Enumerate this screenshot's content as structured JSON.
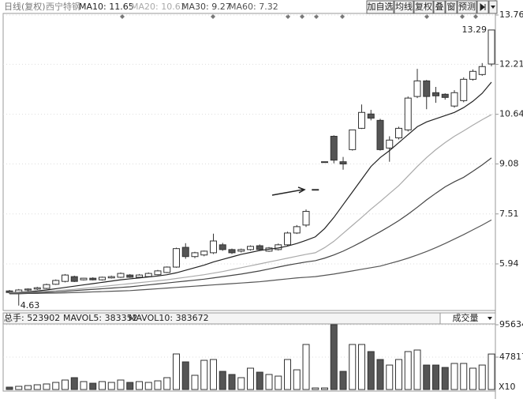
{
  "header": {
    "period": "日线(复权)",
    "stock": "西宁特钢"
  },
  "toolbar": {
    "buttons": [
      "加自选",
      "均线",
      "复权",
      "叠",
      "窗",
      "预测"
    ]
  },
  "chart_data": [
    {
      "type": "candlestick",
      "open": [
        5.09,
        5.04,
        5.12,
        5.15,
        5.17,
        5.3,
        5.39,
        5.54,
        5.44,
        5.49,
        5.44,
        5.5,
        5.52,
        5.59,
        5.52,
        5.54,
        5.6,
        5.67,
        5.84,
        6.46,
        6.17,
        6.22,
        6.29,
        6.54,
        6.39,
        6.34,
        6.39,
        6.51,
        6.34,
        6.39,
        6.54,
        6.91,
        7.16,
        8.28,
        9.15,
        9.95,
        9.15,
        9.53,
        10.2,
        10.65,
        10.45,
        9.58,
        9.9,
        10.15,
        11.2,
        11.69,
        11.32,
        11.27,
        10.9,
        11.07,
        11.74,
        11.89,
        12.22
      ],
      "high": [
        5.12,
        5.15,
        5.17,
        5.22,
        5.32,
        5.45,
        5.62,
        5.57,
        5.5,
        5.52,
        5.54,
        5.57,
        5.67,
        5.62,
        5.62,
        5.67,
        5.75,
        5.86,
        6.45,
        6.59,
        6.32,
        6.36,
        6.89,
        6.6,
        6.42,
        6.42,
        6.52,
        6.55,
        6.47,
        6.58,
        6.95,
        7.16,
        7.65,
        8.28,
        9.15,
        9.98,
        9.3,
        10.15,
        10.95,
        10.78,
        10.5,
        9.95,
        10.25,
        11.2,
        12.07,
        11.72,
        11.5,
        11.3,
        11.4,
        11.8,
        12.05,
        12.25,
        13.29
      ],
      "low": [
        5.0,
        4.63,
        5.08,
        5.12,
        5.15,
        5.28,
        5.36,
        5.37,
        5.42,
        5.42,
        5.42,
        5.48,
        5.5,
        5.5,
        5.5,
        5.52,
        5.58,
        5.65,
        5.82,
        6.1,
        6.12,
        6.18,
        6.25,
        6.35,
        6.25,
        6.3,
        6.36,
        6.36,
        6.32,
        6.36,
        6.5,
        6.88,
        7.1,
        8.28,
        9.15,
        9.1,
        8.9,
        9.5,
        10.18,
        10.45,
        9.5,
        9.15,
        9.85,
        10.1,
        11.15,
        10.8,
        11.0,
        11.1,
        10.85,
        11.02,
        11.7,
        11.85,
        12.15
      ],
      "close": [
        5.04,
        5.12,
        5.15,
        5.19,
        5.29,
        5.42,
        5.59,
        5.39,
        5.49,
        5.44,
        5.52,
        5.54,
        5.64,
        5.52,
        5.59,
        5.64,
        5.72,
        5.84,
        6.42,
        6.17,
        6.29,
        6.34,
        6.66,
        6.39,
        6.29,
        6.39,
        6.49,
        6.39,
        6.44,
        6.54,
        6.91,
        7.11,
        7.59,
        8.28,
        9.15,
        9.2,
        9.08,
        10.15,
        10.7,
        10.52,
        9.53,
        9.83,
        10.2,
        11.15,
        11.69,
        11.2,
        11.22,
        11.17,
        11.32,
        11.74,
        11.99,
        12.14,
        13.29
      ],
      "up_color": "#ffffff",
      "down_color": "#555555",
      "series": [
        {
          "name": "MA10: 11.65",
          "color": "#222222",
          "values": [
            5.04,
            5.05,
            5.07,
            5.09,
            5.12,
            5.16,
            5.2,
            5.24,
            5.28,
            5.32,
            5.36,
            5.4,
            5.44,
            5.47,
            5.5,
            5.53,
            5.56,
            5.6,
            5.66,
            5.74,
            5.82,
            5.9,
            6.0,
            6.08,
            6.16,
            6.24,
            6.3,
            6.36,
            6.4,
            6.44,
            6.5,
            6.58,
            6.68,
            6.79,
            7.05,
            7.4,
            7.8,
            8.2,
            8.6,
            9.0,
            9.28,
            9.5,
            9.75,
            10.0,
            10.25,
            10.4,
            10.5,
            10.6,
            10.7,
            10.85,
            11.05,
            11.3,
            11.65
          ]
        },
        {
          "name": "MA20: 10.63",
          "color": "#aaaaaa",
          "values": [
            5.04,
            5.04,
            5.05,
            5.06,
            5.08,
            5.1,
            5.12,
            5.14,
            5.17,
            5.2,
            5.23,
            5.26,
            5.29,
            5.32,
            5.35,
            5.38,
            5.41,
            5.44,
            5.48,
            5.52,
            5.56,
            5.6,
            5.65,
            5.7,
            5.76,
            5.82,
            5.88,
            5.94,
            6.0,
            6.06,
            6.12,
            6.18,
            6.24,
            6.29,
            6.45,
            6.65,
            6.9,
            7.15,
            7.4,
            7.66,
            7.9,
            8.15,
            8.4,
            8.7,
            9.0,
            9.28,
            9.53,
            9.75,
            9.95,
            10.12,
            10.3,
            10.47,
            10.63
          ]
        },
        {
          "name": "MA30: 9.27",
          "color": "#444444",
          "values": [
            5.02,
            5.02,
            5.03,
            5.04,
            5.05,
            5.06,
            5.08,
            5.1,
            5.12,
            5.14,
            5.16,
            5.18,
            5.2,
            5.22,
            5.25,
            5.28,
            5.31,
            5.34,
            5.37,
            5.4,
            5.43,
            5.46,
            5.5,
            5.54,
            5.58,
            5.62,
            5.67,
            5.72,
            5.78,
            5.84,
            5.9,
            5.95,
            6.0,
            6.04,
            6.12,
            6.22,
            6.34,
            6.48,
            6.63,
            6.79,
            6.95,
            7.12,
            7.3,
            7.5,
            7.72,
            7.95,
            8.16,
            8.36,
            8.52,
            8.66,
            8.85,
            9.05,
            9.27
          ]
        },
        {
          "name": "MA60: 7.32",
          "color": "#555555",
          "values": [
            5.0,
            5.0,
            5.01,
            5.01,
            5.02,
            5.02,
            5.03,
            5.04,
            5.05,
            5.06,
            5.07,
            5.08,
            5.09,
            5.1,
            5.12,
            5.14,
            5.16,
            5.18,
            5.2,
            5.22,
            5.24,
            5.26,
            5.28,
            5.3,
            5.32,
            5.34,
            5.36,
            5.38,
            5.41,
            5.44,
            5.47,
            5.5,
            5.52,
            5.54,
            5.58,
            5.62,
            5.67,
            5.72,
            5.77,
            5.82,
            5.87,
            5.95,
            6.03,
            6.12,
            6.22,
            6.33,
            6.45,
            6.58,
            6.72,
            6.86,
            7.01,
            7.16,
            7.32
          ]
        }
      ],
      "ylim": [
        4.5,
        13.76
      ],
      "yticks": [
        5.94,
        7.51,
        9.08,
        10.64,
        12.21,
        13.76
      ]
    },
    {
      "type": "bar",
      "indicators": [
        "总手: 523902",
        "MAVOL5: 383352",
        "MAVOL10: 383672"
      ],
      "selector": "成交量",
      "unit_label": "X10",
      "values": [
        3500,
        4700,
        5800,
        7000,
        8200,
        10500,
        14000,
        17500,
        11700,
        9300,
        11700,
        10500,
        14000,
        10500,
        11700,
        10500,
        12800,
        17500,
        52500,
        40800,
        21000,
        43100,
        44300,
        26800,
        22200,
        17500,
        31500,
        25600,
        22200,
        19800,
        44300,
        29100,
        66500,
        2300,
        2300,
        95634,
        26800,
        66500,
        66500,
        56000,
        44300,
        36100,
        44300,
        56000,
        58300,
        36100,
        36100,
        32600,
        38500,
        38500,
        31500,
        36100,
        52390
      ],
      "ylim": [
        0,
        95634
      ],
      "yticks": [
        47817,
        95634
      ]
    }
  ]
}
